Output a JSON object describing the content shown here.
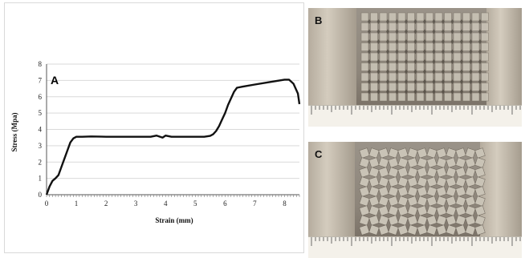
{
  "panels": {
    "a": "A",
    "b": "B",
    "c": "C"
  },
  "chart_data": {
    "type": "line",
    "xlabel": "Strain (mm)",
    "ylabel": "Stress (Mpa)",
    "xlim": [
      0,
      8.5
    ],
    "ylim": [
      0,
      8
    ],
    "x_ticks": [
      "0",
      "1",
      "2",
      "3",
      "4",
      "5",
      "6",
      "7",
      "8"
    ],
    "y_ticks": [
      "0",
      "1",
      "2",
      "3",
      "4",
      "5",
      "6",
      "7",
      "8"
    ],
    "grid": true,
    "series": [
      {
        "color": "#111111",
        "x": [
          0,
          0.1,
          0.2,
          0.3,
          0.4,
          0.5,
          0.6,
          0.7,
          0.8,
          0.9,
          1.0,
          1.2,
          1.5,
          2.0,
          2.5,
          3.0,
          3.5,
          3.7,
          3.9,
          4.0,
          4.2,
          4.5,
          5.0,
          5.3,
          5.5,
          5.6,
          5.7,
          5.8,
          5.9,
          6.0,
          6.1,
          6.2,
          6.3,
          6.4,
          6.6,
          7.0,
          7.5,
          8.0,
          8.15,
          8.3,
          8.45,
          8.5
        ],
        "y": [
          0,
          0.5,
          0.85,
          1.0,
          1.2,
          1.7,
          2.2,
          2.7,
          3.2,
          3.45,
          3.55,
          3.55,
          3.57,
          3.55,
          3.55,
          3.55,
          3.55,
          3.62,
          3.5,
          3.62,
          3.55,
          3.55,
          3.55,
          3.55,
          3.6,
          3.7,
          3.9,
          4.2,
          4.6,
          5.0,
          5.5,
          5.9,
          6.3,
          6.55,
          6.62,
          6.75,
          6.9,
          7.05,
          7.05,
          6.8,
          6.2,
          5.55
        ]
      }
    ]
  },
  "colors": {
    "line": "#111111",
    "grid": "#d9d9d9",
    "photo_metal": "#8f877c",
    "photo_tile": "#c9c3b6",
    "ruler": "#f4f1ea"
  }
}
